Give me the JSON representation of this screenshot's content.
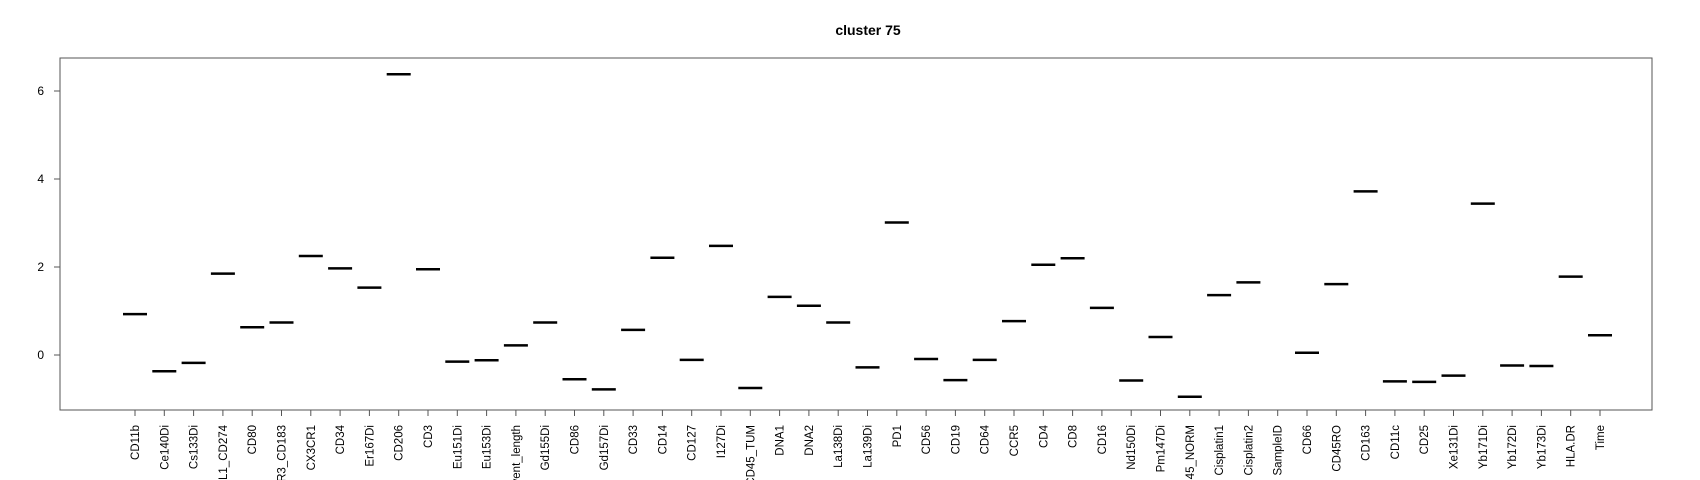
{
  "chart_data": {
    "type": "scatter",
    "title": "cluster 75",
    "xlabel": "",
    "ylabel": "",
    "marker": "horizontal-dash",
    "grid": false,
    "legend": "none",
    "ylim": [
      -1.25,
      6.75
    ],
    "yticks": [
      0,
      2,
      4,
      6
    ],
    "categories": [
      "CD11b",
      "Ce140Di",
      "Cs133Di",
      "L1_CD274",
      "CD80",
      "R3_CD183",
      "CX3CR1",
      "CD34",
      "Er167Di",
      "CD206",
      "CD3",
      "Eu151Di",
      "Eu153Di",
      "vent_length",
      "Gd155Di",
      "CD86",
      "Gd157Di",
      "CD33",
      "CD14",
      "CD127",
      "I127Di",
      "CD45_TUM",
      "DNA1",
      "DNA2",
      "La138Di",
      "La139Di",
      "PD1",
      "CD56",
      "CD19",
      "CD64",
      "CCR5",
      "CD4",
      "CD8",
      "CD16",
      "Nd150Di",
      "Pm147Di",
      "45_NORM",
      "Cisplatin1",
      "Cisplatin2",
      "SampleID",
      "CD66",
      "CD45RO",
      "CD163",
      "CD11c",
      "CD25",
      "Xe131Di",
      "Yb171Di",
      "Yb172Di",
      "Yb173Di",
      "HLA.DR",
      "Time"
    ],
    "values": [
      0.93,
      -0.37,
      -0.18,
      1.85,
      0.63,
      0.74,
      2.25,
      1.97,
      1.53,
      6.38,
      1.95,
      -0.15,
      -0.12,
      0.22,
      0.74,
      -0.55,
      -0.78,
      0.57,
      2.21,
      -0.11,
      2.48,
      -0.75,
      1.32,
      1.12,
      0.74,
      -0.28,
      3.01,
      -0.09,
      -0.57,
      -0.11,
      0.77,
      2.05,
      2.2,
      1.07,
      -0.58,
      0.41,
      -0.95,
      1.36,
      1.65,
      null,
      0.05,
      1.61,
      3.72,
      -0.6,
      -0.61,
      -0.47,
      3.44,
      -0.24,
      -0.25,
      1.78,
      0.45
    ]
  }
}
